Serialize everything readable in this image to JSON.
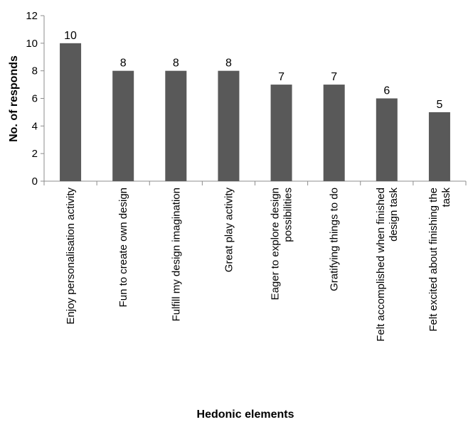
{
  "chart_data": {
    "type": "bar",
    "title": "",
    "xlabel": "Hedonic elements",
    "ylabel": "No. of responds",
    "ylim": [
      0,
      12
    ],
    "yticks": [
      0,
      2,
      4,
      6,
      8,
      10,
      12
    ],
    "grid": false,
    "legend": "none",
    "bar_color": "#595959",
    "categories": [
      "Enjoy personalisation activity",
      "Fun to create own design",
      "Fulfill my design imagination",
      "Great play activity",
      "Eager to explore design possibilities",
      "Gratifying things to do",
      "Felt accomplished when finished design task",
      "Felt excited about finishing the task"
    ],
    "category_label_lines": [
      [
        "Enjoy personalisation activity"
      ],
      [
        "Fun to create own design"
      ],
      [
        "Fulfill my design imagination"
      ],
      [
        "Great play activity"
      ],
      [
        "Eager to explore design",
        "possibilities"
      ],
      [
        "Gratifying things to do"
      ],
      [
        "Felt accomplished when finished",
        "design task"
      ],
      [
        "Felt excited about finishing the",
        "task"
      ]
    ],
    "values": [
      10,
      8,
      8,
      8,
      7,
      7,
      6,
      5
    ]
  }
}
